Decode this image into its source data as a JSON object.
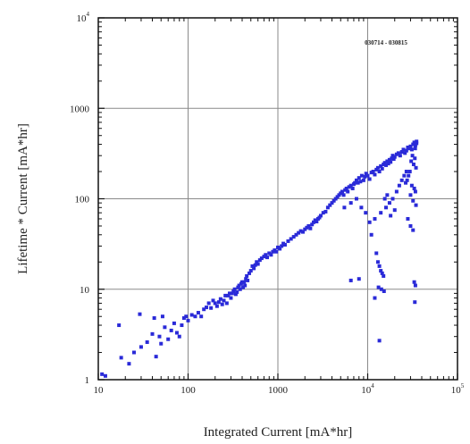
{
  "chart_data": {
    "type": "scatter",
    "title": "",
    "xlabel": "Integrated Current [mA*hr]",
    "ylabel": "Lifetime * Current [mA*hr]",
    "x_scale": "log",
    "y_scale": "log",
    "xlim": [
      10,
      100000
    ],
    "ylim": [
      1,
      10000
    ],
    "grid": true,
    "annotation": "030714 - 030815",
    "x_ticks": [
      {
        "value": 10,
        "label": "10",
        "exp": ""
      },
      {
        "value": 100,
        "label": "100",
        "exp": ""
      },
      {
        "value": 1000,
        "label": "1000",
        "exp": ""
      },
      {
        "value": 10000,
        "label": "10",
        "exp": "4"
      },
      {
        "value": 100000,
        "label": "10",
        "exp": "5"
      }
    ],
    "y_ticks": [
      {
        "value": 1,
        "label": "1",
        "exp": ""
      },
      {
        "value": 10,
        "label": "10",
        "exp": ""
      },
      {
        "value": 100,
        "label": "100",
        "exp": ""
      },
      {
        "value": 1000,
        "label": "1000",
        "exp": ""
      },
      {
        "value": 10000,
        "label": "10",
        "exp": "4"
      }
    ],
    "marker_color": "#2a2ad8",
    "series": [
      {
        "points": [
          [
            11,
            1.15
          ],
          [
            12,
            1.1
          ],
          [
            17,
            4.0
          ],
          [
            18,
            1.75
          ],
          [
            22,
            1.5
          ],
          [
            25,
            2.0
          ],
          [
            29,
            5.3
          ],
          [
            30,
            2.3
          ],
          [
            35,
            2.6
          ],
          [
            40,
            3.2
          ],
          [
            42,
            4.8
          ],
          [
            44,
            1.8
          ],
          [
            48,
            3.0
          ],
          [
            50,
            2.5
          ],
          [
            52,
            5.0
          ],
          [
            55,
            3.8
          ],
          [
            60,
            2.8
          ],
          [
            65,
            3.5
          ],
          [
            70,
            4.2
          ],
          [
            75,
            3.3
          ],
          [
            80,
            3.0
          ],
          [
            85,
            4.0
          ],
          [
            90,
            4.8
          ],
          [
            95,
            5.0
          ],
          [
            100,
            4.5
          ],
          [
            110,
            5.2
          ],
          [
            120,
            5.0
          ],
          [
            130,
            5.5
          ],
          [
            140,
            5.0
          ],
          [
            150,
            6.0
          ],
          [
            160,
            6.3
          ],
          [
            170,
            7.0
          ],
          [
            180,
            6.2
          ],
          [
            190,
            7.5
          ],
          [
            200,
            7.0
          ],
          [
            210,
            6.5
          ],
          [
            220,
            7.2
          ],
          [
            230,
            7.8
          ],
          [
            240,
            6.8
          ],
          [
            250,
            7.5
          ],
          [
            260,
            8.5
          ],
          [
            270,
            7.0
          ],
          [
            280,
            8.5
          ],
          [
            290,
            9.0
          ],
          [
            300,
            8.0
          ],
          [
            310,
            9.0
          ],
          [
            320,
            9.5
          ],
          [
            330,
            10.0
          ],
          [
            340,
            8.8
          ],
          [
            350,
            9.3
          ],
          [
            360,
            10.5
          ],
          [
            370,
            11.0
          ],
          [
            380,
            10.0
          ],
          [
            390,
            11.5
          ],
          [
            400,
            12.0
          ],
          [
            410,
            10.5
          ],
          [
            420,
            12.0
          ],
          [
            430,
            11.0
          ],
          [
            440,
            13.0
          ],
          [
            450,
            14.0
          ],
          [
            460,
            12.5
          ],
          [
            480,
            15.0
          ],
          [
            500,
            16.0
          ],
          [
            520,
            18.0
          ],
          [
            540,
            17.0
          ],
          [
            560,
            18.5
          ],
          [
            580,
            20.0
          ],
          [
            600,
            19.0
          ],
          [
            630,
            21.0
          ],
          [
            660,
            22.0
          ],
          [
            700,
            23.0
          ],
          [
            730,
            24.0
          ],
          [
            760,
            22.5
          ],
          [
            800,
            25.0
          ],
          [
            840,
            24.0
          ],
          [
            880,
            26.0
          ],
          [
            920,
            27.0
          ],
          [
            960,
            26.0
          ],
          [
            1000,
            29.0
          ],
          [
            1050,
            28.0
          ],
          [
            1100,
            30.0
          ],
          [
            1150,
            32.0
          ],
          [
            1200,
            31.0
          ],
          [
            1300,
            34.0
          ],
          [
            1400,
            36.0
          ],
          [
            1500,
            38.0
          ],
          [
            1600,
            40.0
          ],
          [
            1700,
            42.0
          ],
          [
            1800,
            44.0
          ],
          [
            1900,
            43.0
          ],
          [
            2000,
            46.0
          ],
          [
            2100,
            48.0
          ],
          [
            2200,
            50.0
          ],
          [
            2300,
            47.0
          ],
          [
            2400,
            52.0
          ],
          [
            2500,
            55.0
          ],
          [
            2600,
            58.0
          ],
          [
            2700,
            56.0
          ],
          [
            2800,
            60.0
          ],
          [
            2900,
            62.0
          ],
          [
            3000,
            65.0
          ],
          [
            3200,
            70.0
          ],
          [
            3400,
            72.0
          ],
          [
            3600,
            80.0
          ],
          [
            3800,
            85.0
          ],
          [
            4000,
            90.0
          ],
          [
            4200,
            95.0
          ],
          [
            4400,
            100.0
          ],
          [
            4600,
            105.0
          ],
          [
            4800,
            110.0
          ],
          [
            5000,
            115.0
          ],
          [
            5200,
            120.0
          ],
          [
            5400,
            110.0
          ],
          [
            5600,
            125.0
          ],
          [
            5800,
            130.0
          ],
          [
            6000,
            120.0
          ],
          [
            6200,
            135.0
          ],
          [
            6500,
            140.0
          ],
          [
            6800,
            130.0
          ],
          [
            7000,
            145.0
          ],
          [
            7200,
            150.0
          ],
          [
            7500,
            160.0
          ],
          [
            7800,
            150.0
          ],
          [
            8000,
            170.0
          ],
          [
            8300,
            155.0
          ],
          [
            8600,
            180.0
          ],
          [
            9000,
            160.0
          ],
          [
            9300,
            175.0
          ],
          [
            9600,
            190.0
          ],
          [
            10000,
            180.0
          ],
          [
            10500,
            165.0
          ],
          [
            11000,
            195.0
          ],
          [
            11500,
            200.0
          ],
          [
            12000,
            185.0
          ],
          [
            12500,
            210.0
          ],
          [
            13000,
            220.0
          ],
          [
            13500,
            200.0
          ],
          [
            14000,
            230.0
          ],
          [
            14500,
            215.0
          ],
          [
            15000,
            240.0
          ],
          [
            15500,
            250.0
          ],
          [
            16000,
            235.0
          ],
          [
            16500,
            260.0
          ],
          [
            17000,
            245.0
          ],
          [
            17500,
            270.0
          ],
          [
            18000,
            255.0
          ],
          [
            18500,
            280.0
          ],
          [
            19000,
            300.0
          ],
          [
            19500,
            275.0
          ],
          [
            20000,
            290.0
          ],
          [
            21000,
            310.0
          ],
          [
            22000,
            320.0
          ],
          [
            23000,
            300.0
          ],
          [
            24000,
            330.0
          ],
          [
            25000,
            350.0
          ],
          [
            26000,
            320.0
          ],
          [
            27000,
            340.0
          ],
          [
            28000,
            370.0
          ],
          [
            29000,
            360.0
          ],
          [
            30000,
            380.0
          ],
          [
            31000,
            350.0
          ],
          [
            32000,
            400.0
          ],
          [
            33000,
            420.0
          ],
          [
            34000,
            390.0
          ],
          [
            35000,
            410.0
          ],
          [
            31500,
            300.0
          ],
          [
            33500,
            280.0
          ],
          [
            30500,
            260.0
          ],
          [
            32500,
            240.0
          ],
          [
            34500,
            220.0
          ],
          [
            29500,
            200.0
          ],
          [
            28500,
            180.0
          ],
          [
            27500,
            160.0
          ],
          [
            26500,
            150.0
          ],
          [
            31000,
            140.0
          ],
          [
            33000,
            130.0
          ],
          [
            34000,
            120.0
          ],
          [
            30000,
            110.0
          ],
          [
            32000,
            95.0
          ],
          [
            34500,
            85.0
          ],
          [
            35000,
            430.0
          ],
          [
            33800,
            360.0
          ],
          [
            27000,
            200.0
          ],
          [
            25500,
            180.0
          ],
          [
            24000,
            160.0
          ],
          [
            22500,
            140.0
          ],
          [
            21000,
            120.0
          ],
          [
            19000,
            100.0
          ],
          [
            17500,
            90.0
          ],
          [
            16000,
            80.0
          ],
          [
            14000,
            70.0
          ],
          [
            12000,
            60.0
          ],
          [
            10500,
            55.0
          ],
          [
            9500,
            70.0
          ],
          [
            8500,
            80.0
          ],
          [
            7500,
            100.0
          ],
          [
            6500,
            90.0
          ],
          [
            5500,
            80.0
          ],
          [
            11000,
            40.0
          ],
          [
            12500,
            25.0
          ],
          [
            13000,
            20.0
          ],
          [
            13500,
            18.0
          ],
          [
            14000,
            16.0
          ],
          [
            14500,
            15.0
          ],
          [
            15000,
            14.0
          ],
          [
            13200,
            10.5
          ],
          [
            14200,
            10.0
          ],
          [
            15200,
            9.5
          ],
          [
            12000,
            8.0
          ],
          [
            13500,
            2.7
          ],
          [
            8000,
            13.0
          ],
          [
            6500,
            12.5
          ],
          [
            33000,
            12.0
          ],
          [
            34000,
            11.0
          ],
          [
            33500,
            7.2
          ],
          [
            28000,
            60.0
          ],
          [
            30000,
            50.0
          ],
          [
            32000,
            45.0
          ],
          [
            20000,
            75.0
          ],
          [
            18000,
            65.0
          ],
          [
            16500,
            110.0
          ],
          [
            15500,
            100.0
          ]
        ]
      }
    ]
  }
}
